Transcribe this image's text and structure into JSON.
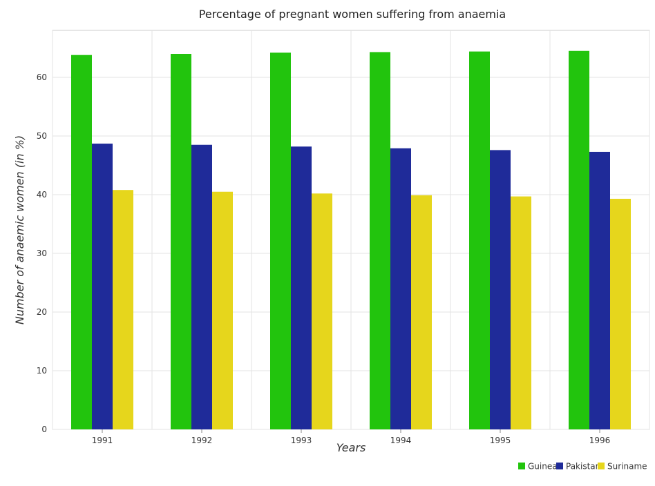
{
  "chart_data": {
    "type": "bar",
    "title": "Percentage of pregnant women suffering from anaemia",
    "xlabel": "Years",
    "ylabel": "Number of anaemic women (in %)",
    "categories": [
      "1991",
      "1992",
      "1993",
      "1994",
      "1995",
      "1996"
    ],
    "ylim": [
      0,
      68
    ],
    "yticks": [
      0,
      10,
      20,
      30,
      40,
      50,
      60
    ],
    "grid": true,
    "legend_position": "bottom-right",
    "series": [
      {
        "name": "Guinea",
        "color": "#22c40d",
        "values": [
          63.8,
          64.0,
          64.2,
          64.3,
          64.4,
          64.5
        ]
      },
      {
        "name": "Pakistan",
        "color": "#1f2b99",
        "values": [
          48.7,
          48.5,
          48.2,
          47.9,
          47.6,
          47.3
        ]
      },
      {
        "name": "Suriname",
        "color": "#e6d61c",
        "values": [
          40.8,
          40.5,
          40.2,
          39.9,
          39.7,
          39.3
        ]
      }
    ]
  }
}
